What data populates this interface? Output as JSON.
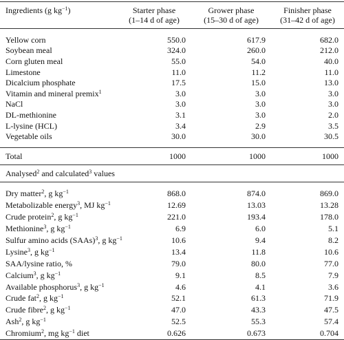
{
  "table": {
    "header": {
      "label": [
        "Ingredients (g kg",
        {
          "sup": "−1"
        },
        ")"
      ],
      "columns": [
        [
          "Starter phase",
          "(1–14 d of age)"
        ],
        [
          "Grower phase",
          "(15–30 d of age)"
        ],
        [
          "Finisher phase",
          "(31–42 d of age)"
        ]
      ]
    },
    "ingredients": [
      {
        "label": [
          "Yellow corn"
        ],
        "values": [
          "550.0",
          "617.9",
          "682.0"
        ]
      },
      {
        "label": [
          "Soybean meal"
        ],
        "values": [
          "324.0",
          "260.0",
          "212.0"
        ]
      },
      {
        "label": [
          "Corn gluten meal"
        ],
        "values": [
          "55.0",
          "54.0",
          "40.0"
        ]
      },
      {
        "label": [
          "Limestone"
        ],
        "values": [
          "11.0",
          "11.2",
          "11.0"
        ]
      },
      {
        "label": [
          "Dicalcium phosphate"
        ],
        "values": [
          "17.5",
          "15.0",
          "13.0"
        ]
      },
      {
        "label": [
          "Vitamin and mineral premix",
          {
            "sup": "1"
          }
        ],
        "values": [
          "3.0",
          "3.0",
          "3.0"
        ]
      },
      {
        "label": [
          "NaCl"
        ],
        "values": [
          "3.0",
          "3.0",
          "3.0"
        ]
      },
      {
        "label": [
          "DL-methionine"
        ],
        "values": [
          "3.1",
          "3.0",
          "2.0"
        ]
      },
      {
        "label": [
          "L-lysine (HCL)"
        ],
        "values": [
          "3.4",
          "2.9",
          "3.5"
        ]
      },
      {
        "label": [
          "Vegetable oils"
        ],
        "values": [
          "30.0",
          "30.0",
          "30.5"
        ]
      }
    ],
    "total": {
      "label": [
        "Total"
      ],
      "values": [
        "1000",
        "1000",
        "1000"
      ]
    },
    "section": [
      "Analysed",
      {
        "sup": "2"
      },
      " and calculated",
      {
        "sup": "3"
      },
      " values"
    ],
    "analysed": [
      {
        "label": [
          "Dry matter",
          {
            "sup": "2"
          },
          ", g kg",
          {
            "sup": "−1"
          }
        ],
        "values": [
          "868.0",
          "874.0",
          "869.0"
        ]
      },
      {
        "label": [
          "Metabolizable energy",
          {
            "sup": "3"
          },
          ", MJ kg",
          {
            "sup": "−1"
          }
        ],
        "values": [
          "12.69",
          "13.03",
          "13.28"
        ]
      },
      {
        "label": [
          "Crude protein",
          {
            "sup": "2"
          },
          ", g kg",
          {
            "sup": "−1"
          }
        ],
        "values": [
          "221.0",
          "193.4",
          "178.0"
        ]
      },
      {
        "label": [
          "Methionine",
          {
            "sup": "3"
          },
          ", g kg",
          {
            "sup": "−1"
          }
        ],
        "values": [
          "6.9",
          "6.0",
          "5.1"
        ]
      },
      {
        "label": [
          "Sulfur amino acids (SAAs)",
          {
            "sup": "3"
          },
          ", g kg",
          {
            "sup": "−1"
          }
        ],
        "values": [
          "10.6",
          "9.4",
          "8.2"
        ]
      },
      {
        "label": [
          "Lysine",
          {
            "sup": "3"
          },
          ", g kg",
          {
            "sup": "−1"
          }
        ],
        "values": [
          "13.4",
          "11.8",
          "10.6"
        ]
      },
      {
        "label": [
          "SAA/lysine ratio, %"
        ],
        "values": [
          "79.0",
          "80.0",
          "77.0"
        ]
      },
      {
        "label": [
          "Calcium",
          {
            "sup": "3"
          },
          ", g kg",
          {
            "sup": "−1"
          }
        ],
        "values": [
          "9.1",
          "8.5",
          "7.9"
        ]
      },
      {
        "label": [
          "Available phosphorus",
          {
            "sup": "3"
          },
          ", g kg",
          {
            "sup": "−1"
          }
        ],
        "values": [
          "4.6",
          "4.1",
          "3.6"
        ]
      },
      {
        "label": [
          "Crude fat",
          {
            "sup": "2"
          },
          ", g kg",
          {
            "sup": "−1"
          }
        ],
        "values": [
          "52.1",
          "61.3",
          "71.9"
        ]
      },
      {
        "label": [
          "Crude fibre",
          {
            "sup": "2"
          },
          ", g kg",
          {
            "sup": "−1"
          }
        ],
        "values": [
          "47.0",
          "43.3",
          "47.5"
        ]
      },
      {
        "label": [
          "Ash",
          {
            "sup": "2"
          },
          ", g kg",
          {
            "sup": "−1"
          }
        ],
        "values": [
          "52.5",
          "55.3",
          "57.4"
        ]
      },
      {
        "label": [
          "Chromium",
          {
            "sup": "2"
          },
          ", mg kg",
          {
            "sup": "−1"
          },
          " diet"
        ],
        "values": [
          "0.626",
          "0.673",
          "0.704"
        ]
      }
    ]
  }
}
